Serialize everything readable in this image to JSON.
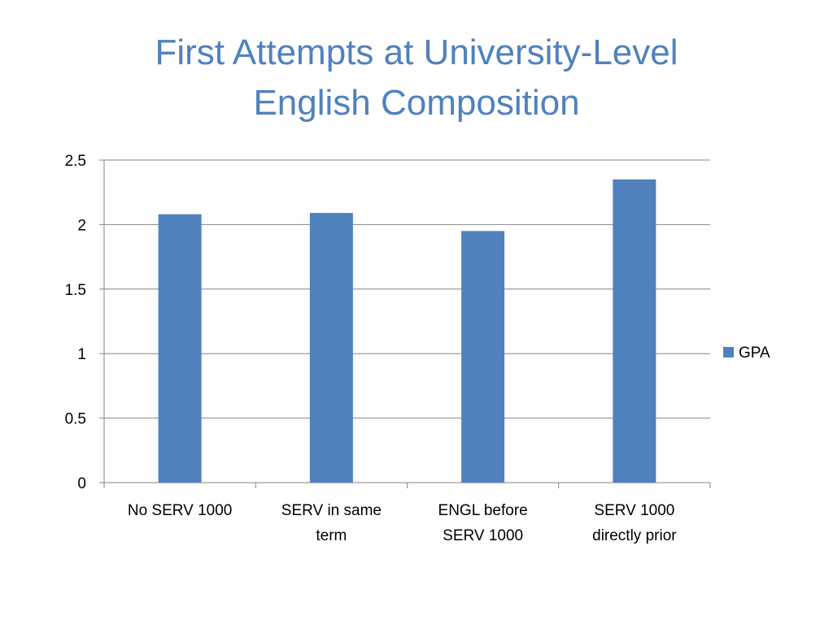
{
  "slide": {
    "title_line1": "First Attempts at University-Level",
    "title_line2": "English Composition"
  },
  "chart_data": {
    "type": "bar",
    "title": "",
    "xlabel": "",
    "ylabel": "",
    "categories": [
      [
        "No SERV 1000"
      ],
      [
        "SERV in same",
        "term"
      ],
      [
        "ENGL before",
        "SERV 1000"
      ],
      [
        "SERV 1000",
        "directly prior"
      ]
    ],
    "series": [
      {
        "name": "GPA",
        "color": "#4f81bd",
        "values": [
          2.08,
          2.09,
          1.95,
          2.35
        ]
      }
    ],
    "ylim": [
      0,
      2.5
    ],
    "yticks": [
      "0",
      "0.5",
      "1",
      "1.5",
      "2",
      "2.5"
    ],
    "grid": true,
    "legend": "right"
  }
}
